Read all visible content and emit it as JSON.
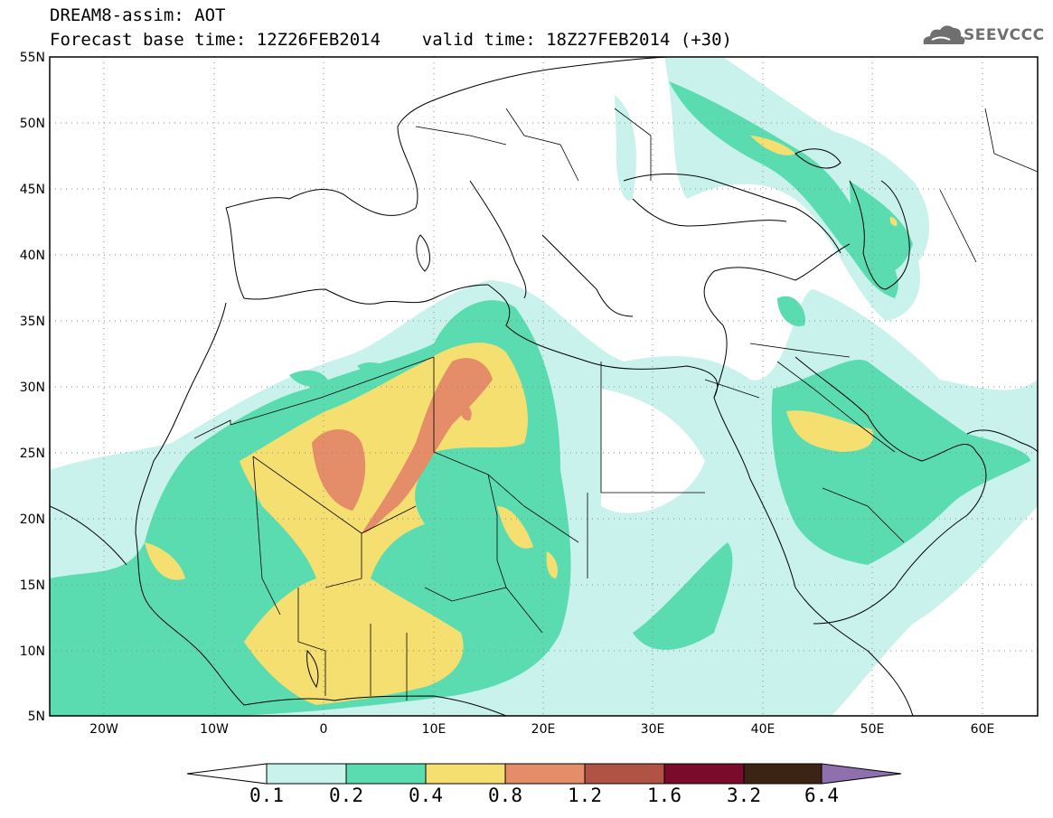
{
  "header": {
    "title_line1": "DREAM8-assim: AOT",
    "title_line2": "Forecast base time: 12Z26FEB2014    valid time: 18Z27FEB2014 (+30)"
  },
  "logo": {
    "text": "SEEVCCC",
    "icon": "cloud-icon"
  },
  "map": {
    "lat_labels": [
      "55N",
      "50N",
      "45N",
      "40N",
      "35N",
      "30N",
      "25N",
      "20N",
      "15N",
      "10N",
      "5N"
    ],
    "lon_labels": [
      "20W",
      "10W",
      "0",
      "10E",
      "20E",
      "30E",
      "40E",
      "50E",
      "60E"
    ],
    "lat_range": [
      5,
      55
    ],
    "lon_range": [
      -25,
      65
    ],
    "grid": "dotted"
  },
  "colorbar": {
    "labels": [
      "0.1",
      "0.2",
      "0.4",
      "0.8",
      "1.2",
      "1.6",
      "3.2",
      "6.4"
    ],
    "colors": [
      "#ffffff",
      "#c9f2ec",
      "#5bdcb0",
      "#f5df71",
      "#e58c68",
      "#b05244",
      "#7a0b2b",
      "#3b2414",
      "#8f6fae"
    ]
  },
  "colors": {
    "level_0_1": "#c9f2ec",
    "level_0_2": "#5bdcb0",
    "level_0_4": "#f5df71",
    "level_0_8": "#e58c68"
  }
}
